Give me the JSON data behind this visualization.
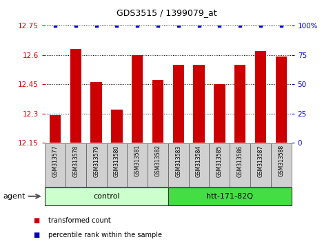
{
  "title": "GDS3515 / 1399079_at",
  "samples": [
    "GSM313577",
    "GSM313578",
    "GSM313579",
    "GSM313580",
    "GSM313581",
    "GSM313582",
    "GSM313583",
    "GSM313584",
    "GSM313585",
    "GSM313586",
    "GSM313587",
    "GSM313588"
  ],
  "values": [
    12.29,
    12.63,
    12.46,
    12.32,
    12.6,
    12.47,
    12.55,
    12.55,
    12.45,
    12.55,
    12.62,
    12.59
  ],
  "percentile_values": [
    100,
    100,
    100,
    100,
    100,
    100,
    100,
    100,
    100,
    100,
    100,
    100
  ],
  "bar_color": "#cc0000",
  "percentile_color": "#0000cc",
  "ylim_left": [
    12.15,
    12.75
  ],
  "ylim_right": [
    0,
    100
  ],
  "yticks_left": [
    12.15,
    12.3,
    12.45,
    12.6,
    12.75
  ],
  "yticks_right": [
    0,
    25,
    50,
    75,
    100
  ],
  "ytick_labels_left": [
    "12.15",
    "12.3",
    "12.45",
    "12.6",
    "12.75"
  ],
  "ytick_labels_right": [
    "0",
    "25",
    "50",
    "75",
    "100%"
  ],
  "control_samples": 6,
  "control_label": "control",
  "treatment_label": "htt-171-82Q",
  "agent_label": "agent",
  "legend_bar_label": "transformed count",
  "legend_dot_label": "percentile rank within the sample",
  "control_bg_light": "#ccffcc",
  "control_bg_dark": "#44dd44",
  "xticklabel_bg": "#d0d0d0"
}
